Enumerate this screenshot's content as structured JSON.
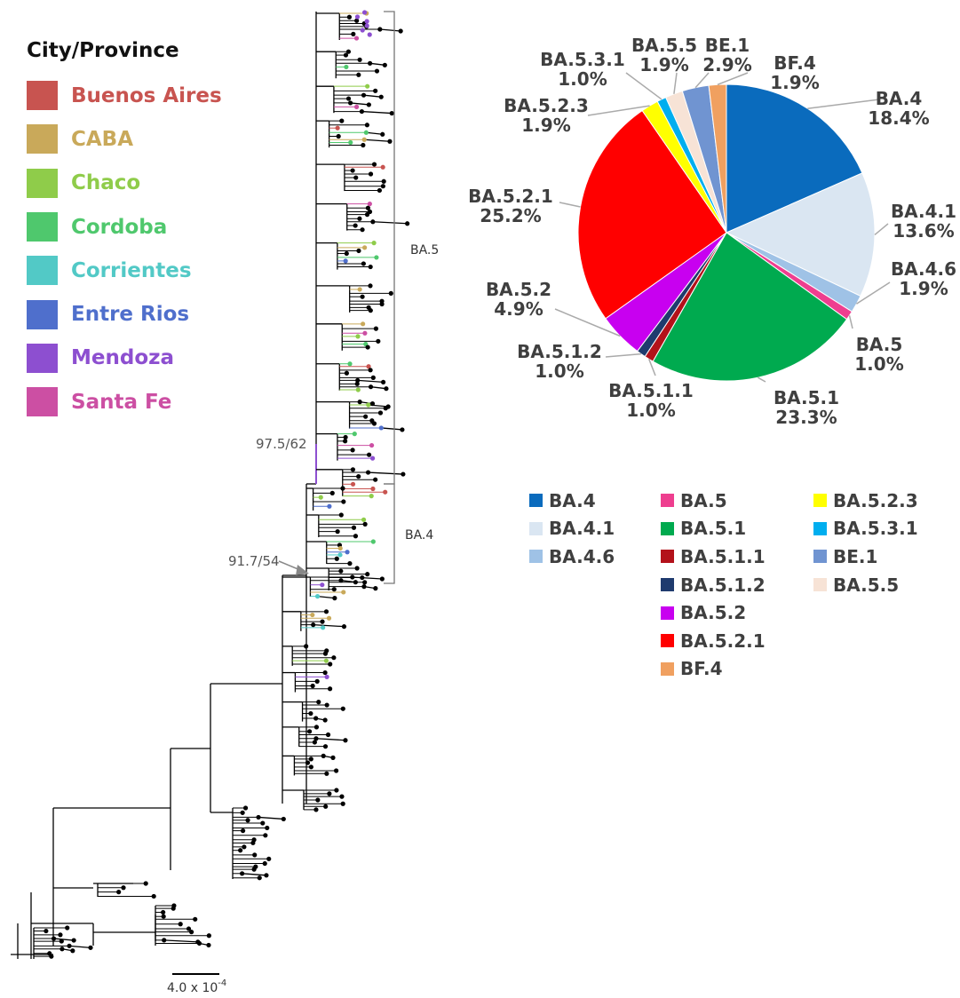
{
  "province_legend": {
    "title": "City/Province",
    "items": [
      {
        "label": "Buenos Aires",
        "color": "#c85450"
      },
      {
        "label": "CABA",
        "color": "#c9a95a"
      },
      {
        "label": "Chaco",
        "color": "#8fcc4a"
      },
      {
        "label": "Cordoba",
        "color": "#4fc86d"
      },
      {
        "label": "Corrientes",
        "color": "#52c9c6"
      },
      {
        "label": "Entre Rios",
        "color": "#4f6fcc"
      },
      {
        "label": "Mendoza",
        "color": "#8d4fd0"
      },
      {
        "label": "Santa Fe",
        "color": "#cc4fa3"
      }
    ]
  },
  "tree": {
    "clades": [
      {
        "label": "BA.5"
      },
      {
        "label": "BA.4"
      }
    ],
    "support_values": [
      "97.5/62",
      "91.7/54"
    ],
    "scale_bar": "4.0 x 10",
    "scale_bar_exponent": "-4"
  },
  "chart_data": {
    "type": "pie",
    "slices": [
      {
        "name": "BA.4",
        "value": 18.4,
        "label": "18.4%",
        "color": "#0a6bbd"
      },
      {
        "name": "BA.4.1",
        "value": 13.6,
        "label": "13.6%",
        "color": "#dae6f2"
      },
      {
        "name": "BA.4.6",
        "value": 1.9,
        "label": "1.9%",
        "color": "#9fc2e6"
      },
      {
        "name": "BA.5",
        "value": 1.0,
        "label": "1.0%",
        "color": "#ee3e8f"
      },
      {
        "name": "BA.5.1",
        "value": 23.3,
        "label": "23.3%",
        "color": "#00aa4f"
      },
      {
        "name": "BA.5.1.1",
        "value": 1.0,
        "label": "1.0%",
        "color": "#b3111a"
      },
      {
        "name": "BA.5.1.2",
        "value": 1.0,
        "label": "1.0%",
        "color": "#1f3b6e"
      },
      {
        "name": "BA.5.2",
        "value": 4.9,
        "label": "4.9%",
        "color": "#c800f0"
      },
      {
        "name": "BA.5.2.1",
        "value": 25.2,
        "label": "25.2%",
        "color": "#ff0000"
      },
      {
        "name": "BA.5.2.3",
        "value": 1.9,
        "label": "1.9%",
        "color": "#ffff00"
      },
      {
        "name": "BA.5.3.1",
        "value": 1.0,
        "label": "1.0%",
        "color": "#00aeef"
      },
      {
        "name": "BA.5.5",
        "value": 1.9,
        "label": "1.9%",
        "color": "#f7e3d6"
      },
      {
        "name": "BE.1",
        "value": 2.9,
        "label": "2.9%",
        "color": "#7094d1"
      },
      {
        "name": "BF.4",
        "value": 1.9,
        "label": "1.9%",
        "color": "#f0a060"
      }
    ],
    "legend": {
      "columns": [
        [
          "BA.4",
          "BA.4.1",
          "BA.4.6"
        ],
        [
          "BA.5",
          "BA.5.1",
          "BA.5.1.1",
          "BA.5.1.2",
          "BA.5.2",
          "BA.5.2.1",
          "BF.4"
        ],
        [
          "BA.5.2.3",
          "BA.5.3.1",
          "BE.1",
          "BA.5.5"
        ]
      ]
    }
  }
}
